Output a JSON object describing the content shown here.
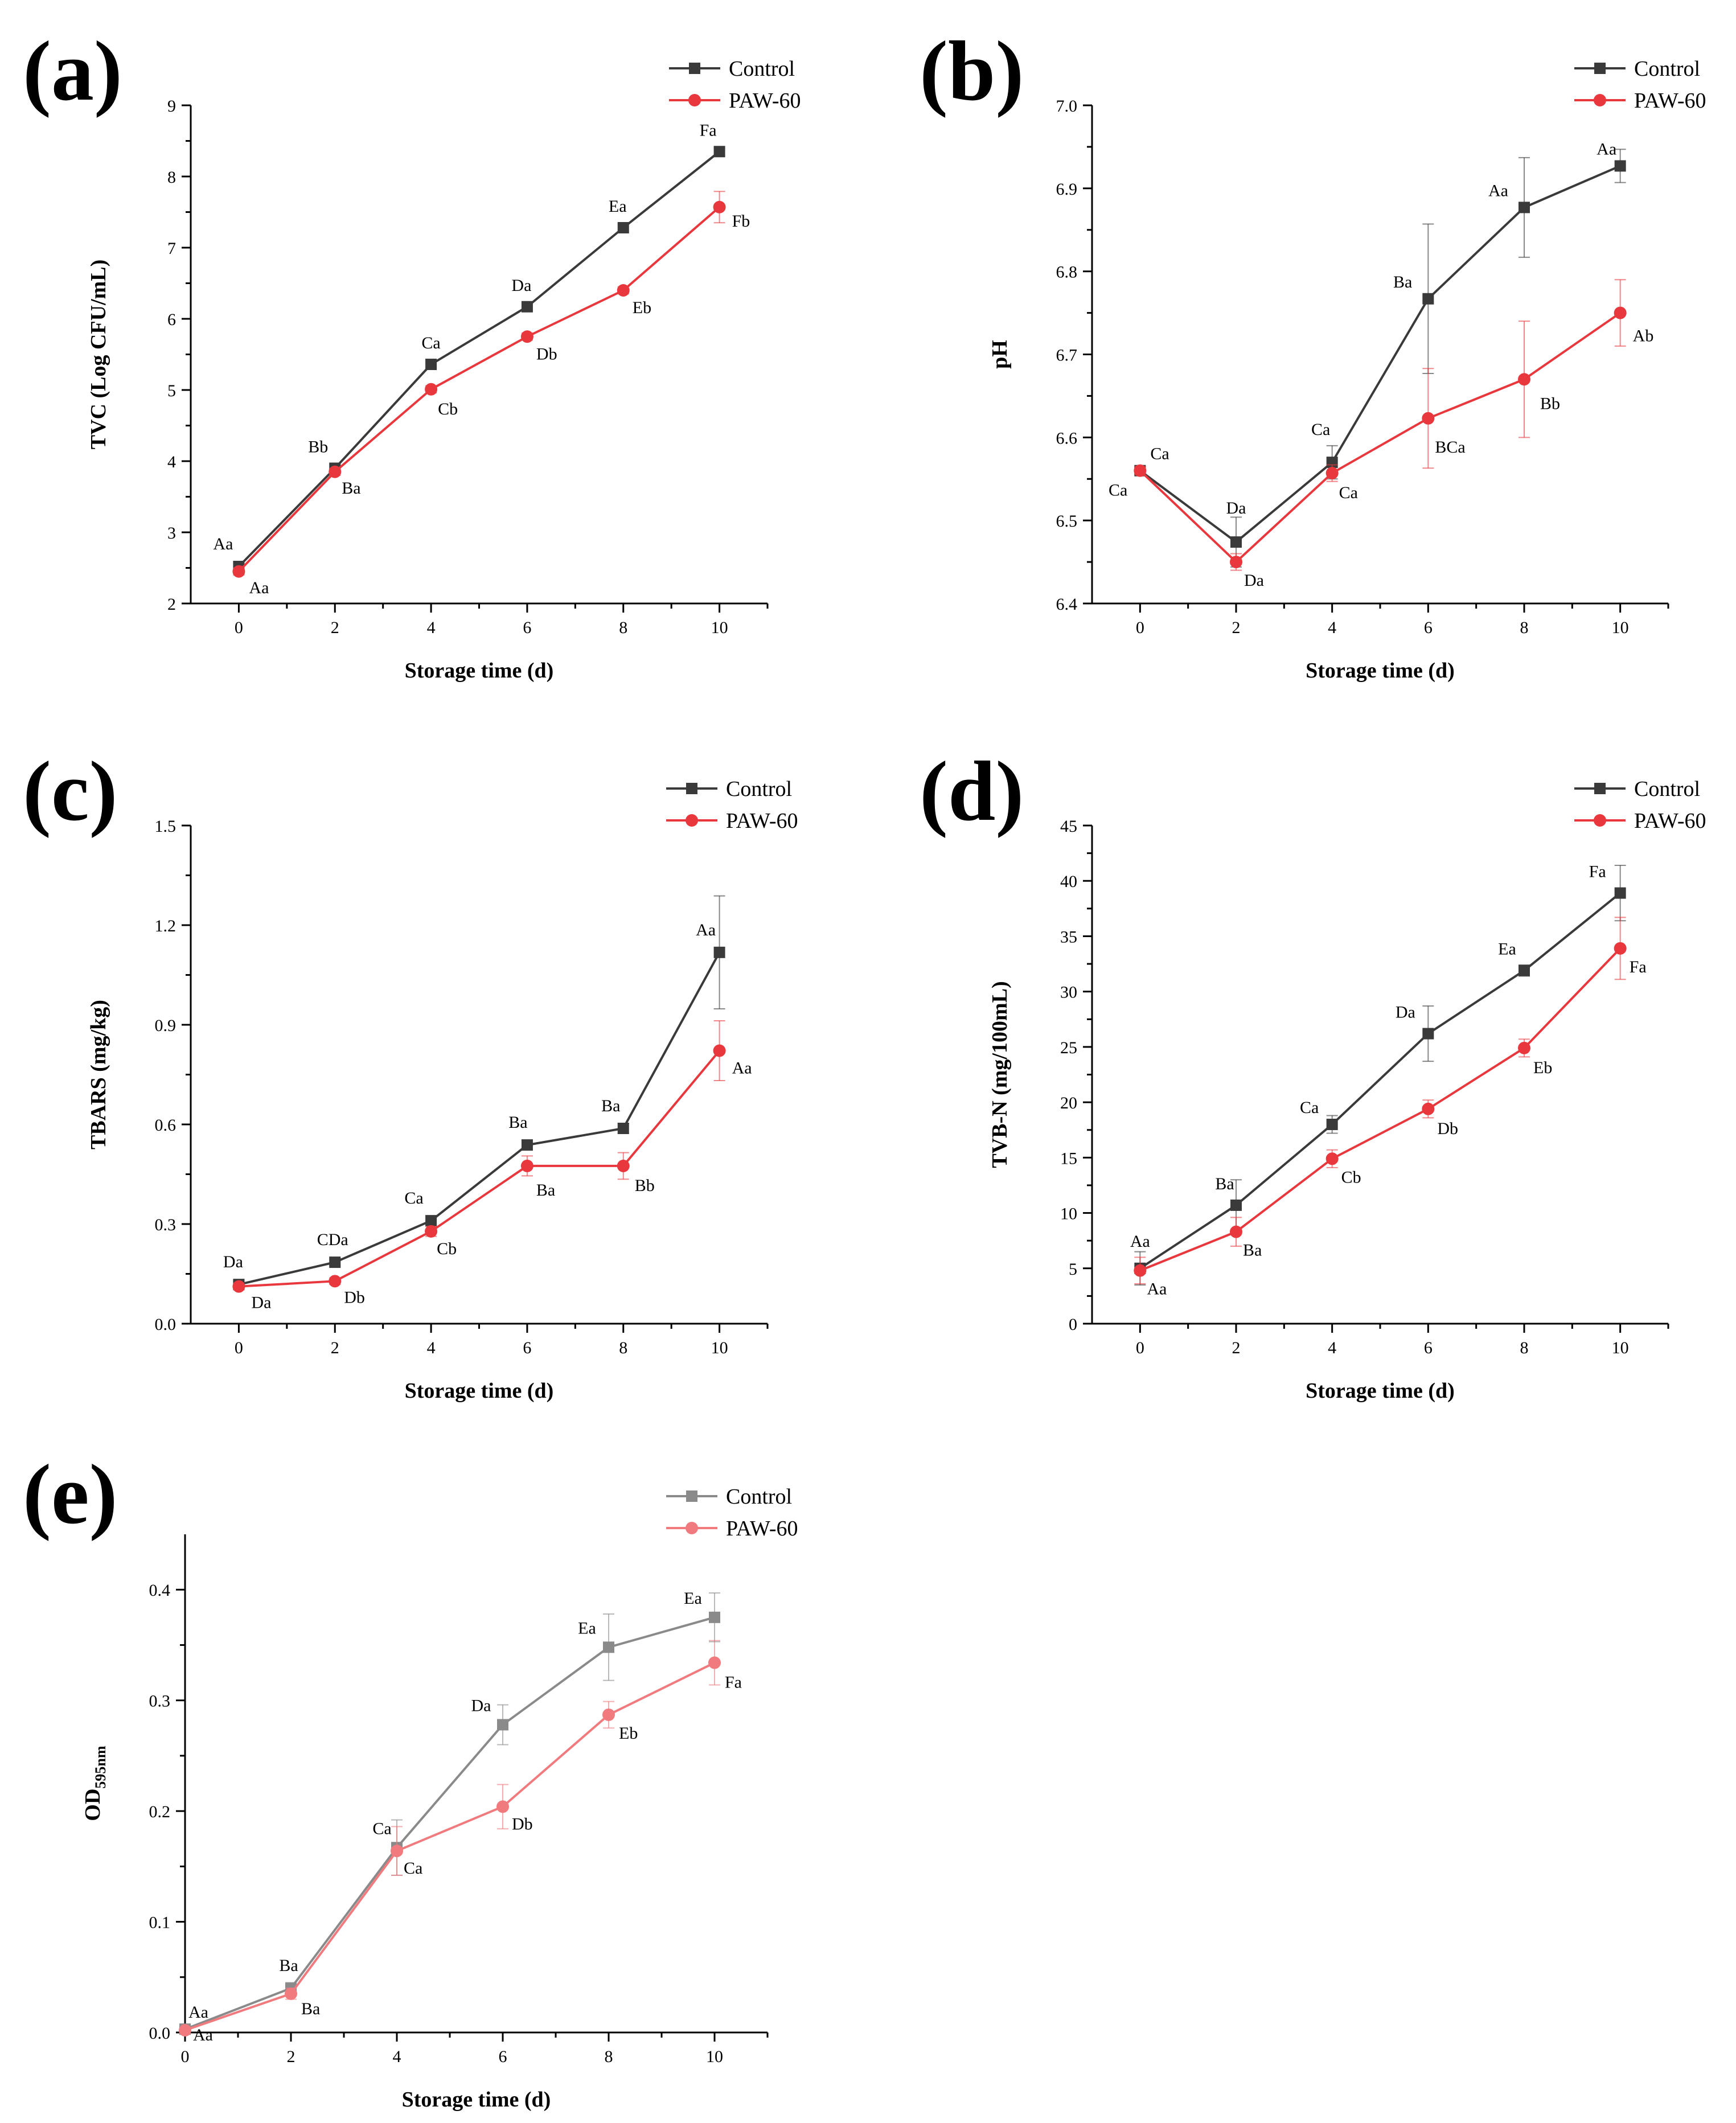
{
  "chart_data": [
    {
      "id": "a",
      "type": "line",
      "panel_label": "(a)",
      "xlabel": "Storage time (d)",
      "ylabel": "TVC (Log CFU/mL)",
      "ylim": [
        2,
        9
      ],
      "xlim": [
        -1,
        11
      ],
      "xticks": [
        0,
        2,
        4,
        6,
        8,
        10
      ],
      "yticks": [
        2,
        3,
        4,
        5,
        6,
        7,
        8,
        9
      ],
      "tick_decimals": 0,
      "legend_position": "top-right",
      "x": [
        0,
        2,
        4,
        6,
        8,
        10
      ],
      "series": [
        {
          "name": "Control",
          "color": "#3a3a3a",
          "marker": "square",
          "values": [
            2.52,
            3.9,
            5.36,
            6.17,
            7.28,
            8.35
          ],
          "errors": [
            0.05,
            0.05,
            0.05,
            0.05,
            0.05,
            0.05
          ],
          "labels": [
            "Aa",
            "Bb",
            "Ca",
            "Da",
            "Ea",
            "Fa"
          ]
        },
        {
          "name": "PAW-60",
          "color": "#e8383d",
          "marker": "circle",
          "values": [
            2.45,
            3.85,
            5.01,
            5.75,
            6.4,
            7.57
          ],
          "errors": [
            0.05,
            0.05,
            0.05,
            0.05,
            0.05,
            0.22
          ],
          "labels": [
            "Aa",
            "Ba",
            "Cb",
            "Db",
            "Eb",
            "Fb"
          ]
        }
      ]
    },
    {
      "id": "b",
      "type": "line",
      "panel_label": "(b)",
      "xlabel": "Storage time (d)",
      "ylabel": "pH",
      "ylim": [
        6.4,
        7.0
      ],
      "xlim": [
        -1,
        11
      ],
      "xticks": [
        0,
        2,
        4,
        6,
        8,
        10
      ],
      "yticks": [
        6.4,
        6.5,
        6.6,
        6.7,
        6.8,
        6.9,
        7.0
      ],
      "tick_decimals": 1,
      "legend_position": "top-right",
      "x": [
        0,
        2,
        4,
        6,
        8,
        10
      ],
      "series": [
        {
          "name": "Control",
          "color": "#3a3a3a",
          "marker": "square",
          "values": [
            6.56,
            6.474,
            6.57,
            6.767,
            6.877,
            6.927
          ],
          "errors": [
            0.005,
            0.03,
            0.02,
            0.09,
            0.06,
            0.02
          ],
          "labels": [
            "Ca",
            "Da",
            "Ca",
            "Ba",
            "Aa",
            "Aa"
          ]
        },
        {
          "name": "PAW-60",
          "color": "#e8383d",
          "marker": "circle",
          "values": [
            6.56,
            6.45,
            6.557,
            6.623,
            6.67,
            6.75
          ],
          "errors": [
            0.005,
            0.01,
            0.01,
            0.06,
            0.07,
            0.04
          ],
          "labels": [
            "Ca",
            "Da",
            "Ca",
            "BCa",
            "Bb",
            "Ab"
          ]
        }
      ]
    },
    {
      "id": "c",
      "type": "line",
      "panel_label": "(c)",
      "xlabel": "Storage time (d)",
      "ylabel": "TBARS (mg/kg)",
      "ylim": [
        0.0,
        1.5
      ],
      "xlim": [
        -1,
        11
      ],
      "xticks": [
        0,
        2,
        4,
        6,
        8,
        10
      ],
      "yticks": [
        0.0,
        0.3,
        0.6,
        0.9,
        1.2,
        1.5
      ],
      "tick_decimals": 1,
      "legend_position": "top-right",
      "x": [
        0,
        2,
        4,
        6,
        8,
        10
      ],
      "series": [
        {
          "name": "Control",
          "color": "#3a3a3a",
          "marker": "square",
          "values": [
            0.118,
            0.185,
            0.31,
            0.538,
            0.588,
            1.118
          ],
          "errors": [
            0.01,
            0.01,
            0.015,
            0.015,
            0.015,
            0.17
          ],
          "labels": [
            "Da",
            "CDa",
            "Ca",
            "Ba",
            "Ba",
            "Aa"
          ]
        },
        {
          "name": "PAW-60",
          "color": "#e8383d",
          "marker": "circle",
          "values": [
            0.112,
            0.128,
            0.278,
            0.475,
            0.475,
            0.822
          ],
          "errors": [
            0.01,
            0.01,
            0.015,
            0.03,
            0.04,
            0.09
          ],
          "labels": [
            "Da",
            "Db",
            "Cb",
            "Ba",
            "Bb",
            "Aa"
          ]
        }
      ]
    },
    {
      "id": "d",
      "type": "line",
      "panel_label": "(d)",
      "xlabel": "Storage time (d)",
      "ylabel": "TVB-N (mg/100mL)",
      "ylim": [
        0,
        45
      ],
      "xlim": [
        -1,
        11
      ],
      "xticks": [
        0,
        2,
        4,
        6,
        8,
        10
      ],
      "yticks": [
        0,
        5,
        10,
        15,
        20,
        25,
        30,
        35,
        40,
        45
      ],
      "tick_decimals": 0,
      "legend_position": "top-right",
      "x": [
        0,
        2,
        4,
        6,
        8,
        10
      ],
      "series": [
        {
          "name": "Control",
          "color": "#3a3a3a",
          "marker": "square",
          "values": [
            5.0,
            10.7,
            18.0,
            26.2,
            31.9,
            38.9
          ],
          "errors": [
            1.5,
            2.3,
            0.8,
            2.5,
            0.5,
            2.5
          ],
          "labels": [
            "Aa",
            "Ba",
            "Ca",
            "Da",
            "Ea",
            "Fa"
          ]
        },
        {
          "name": "PAW-60",
          "color": "#e8383d",
          "marker": "circle",
          "values": [
            4.8,
            8.3,
            14.9,
            19.4,
            24.9,
            33.9
          ],
          "errors": [
            1.2,
            1.3,
            0.8,
            0.8,
            0.8,
            2.8
          ],
          "labels": [
            "Aa",
            "Ba",
            "Cb",
            "Db",
            "Eb",
            "Fa"
          ]
        }
      ]
    },
    {
      "id": "e",
      "type": "line",
      "panel_label": "(e)",
      "xlabel": "Storage time (d)",
      "ylabel": "OD595nm",
      "ylabel_main": "OD",
      "ylabel_sub": "595nm",
      "ylim": [
        0.0,
        0.45
      ],
      "xlim": [
        0,
        11
      ],
      "xticks": [
        0,
        2,
        4,
        6,
        8,
        10
      ],
      "yticks": [
        0.0,
        0.1,
        0.2,
        0.3,
        0.4
      ],
      "tick_decimals": 1,
      "legend_position": "top-right",
      "x": [
        0,
        2,
        4,
        6,
        8,
        10
      ],
      "series": [
        {
          "name": "Control",
          "color": "#8a8a8a",
          "marker": "square",
          "values": [
            0.003,
            0.04,
            0.167,
            0.278,
            0.348,
            0.375
          ],
          "errors": [
            0.002,
            0.005,
            0.025,
            0.018,
            0.03,
            0.022
          ],
          "labels": [
            "Aa",
            "Ba",
            "Ca",
            "Da",
            "Ea",
            "Ea"
          ]
        },
        {
          "name": "PAW-60",
          "color": "#f07a7e",
          "marker": "circle",
          "values": [
            0.002,
            0.035,
            0.164,
            0.204,
            0.287,
            0.334
          ],
          "errors": [
            0.002,
            0.005,
            0.022,
            0.02,
            0.012,
            0.02
          ],
          "labels": [
            "Aa",
            "Ba",
            "Ca",
            "Db",
            "Eb",
            "Fa"
          ]
        }
      ]
    }
  ]
}
